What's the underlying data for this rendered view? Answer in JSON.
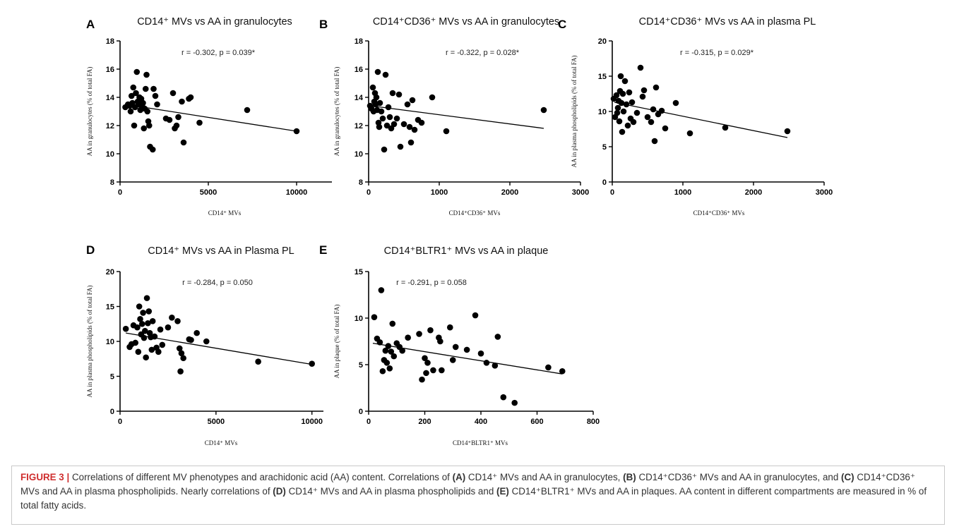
{
  "chart_data": [
    {
      "panel_letter": "A",
      "type": "scatter",
      "title": "CD14⁺ MVs vs AA in granulocytes",
      "annotation": "r = -0.302, p = 0.039*",
      "xlabel": "CD14⁺ MVs",
      "ylabel": "AA in granulocytes (% of total FA)",
      "xlim": [
        0,
        12000
      ],
      "ylim": [
        8,
        18
      ],
      "xticks": [
        "0",
        "5000",
        "10000"
      ],
      "yticks": [
        "8",
        "10",
        "12",
        "14",
        "16",
        "18"
      ],
      "regression": {
        "x": [
          300,
          10000
        ],
        "y": [
          13.5,
          11.6
        ]
      },
      "points": [
        [
          300,
          13.3
        ],
        [
          450,
          13.5
        ],
        [
          550,
          13.4
        ],
        [
          600,
          13.0
        ],
        [
          650,
          14.1
        ],
        [
          700,
          13.6
        ],
        [
          750,
          14.7
        ],
        [
          800,
          12.0
        ],
        [
          850,
          13.3
        ],
        [
          900,
          14.3
        ],
        [
          950,
          15.8
        ],
        [
          1000,
          13.7
        ],
        [
          1050,
          13.5
        ],
        [
          1100,
          14.0
        ],
        [
          1150,
          13.1
        ],
        [
          1200,
          13.9
        ],
        [
          1250,
          13.4
        ],
        [
          1300,
          13.6
        ],
        [
          1350,
          11.8
        ],
        [
          1400,
          13.2
        ],
        [
          1450,
          14.6
        ],
        [
          1500,
          15.6
        ],
        [
          1550,
          13.0
        ],
        [
          1600,
          12.3
        ],
        [
          1650,
          12.0
        ],
        [
          1700,
          10.5
        ],
        [
          1850,
          10.3
        ],
        [
          1900,
          14.6
        ],
        [
          2000,
          14.1
        ],
        [
          2100,
          13.5
        ],
        [
          2600,
          12.5
        ],
        [
          2800,
          12.4
        ],
        [
          3000,
          14.3
        ],
        [
          3100,
          11.8
        ],
        [
          3200,
          12.0
        ],
        [
          3300,
          12.6
        ],
        [
          3500,
          13.7
        ],
        [
          3600,
          10.8
        ],
        [
          3900,
          13.9
        ],
        [
          4000,
          14.0
        ],
        [
          4500,
          12.2
        ],
        [
          7200,
          13.1
        ],
        [
          10000,
          11.6
        ]
      ]
    },
    {
      "panel_letter": "B",
      "type": "scatter",
      "title": "CD14⁺CD36⁺ MVs vs AA in granulocytes",
      "annotation": "r = -0.322, p = 0.028*",
      "xlabel": "CD14⁺CD36⁺ MVs",
      "ylabel": "AA in granulocytes (% of total FA)",
      "xlim": [
        0,
        3000
      ],
      "ylim": [
        8,
        18
      ],
      "xticks": [
        "0",
        "1000",
        "2000",
        "3000"
      ],
      "yticks": [
        "8",
        "10",
        "12",
        "14",
        "16",
        "18"
      ],
      "regression": {
        "x": [
          30,
          2480
        ],
        "y": [
          13.4,
          11.8
        ]
      },
      "points": [
        [
          20,
          13.4
        ],
        [
          40,
          13.2
        ],
        [
          60,
          14.7
        ],
        [
          70,
          13.0
        ],
        [
          80,
          13.7
        ],
        [
          90,
          14.3
        ],
        [
          100,
          13.5
        ],
        [
          110,
          14.0
        ],
        [
          120,
          13.1
        ],
        [
          130,
          15.8
        ],
        [
          140,
          12.2
        ],
        [
          150,
          11.9
        ],
        [
          160,
          13.6
        ],
        [
          180,
          13.0
        ],
        [
          200,
          12.5
        ],
        [
          220,
          10.3
        ],
        [
          240,
          15.6
        ],
        [
          260,
          12.0
        ],
        [
          280,
          13.3
        ],
        [
          300,
          12.6
        ],
        [
          320,
          11.8
        ],
        [
          340,
          14.3
        ],
        [
          360,
          12.1
        ],
        [
          400,
          12.5
        ],
        [
          430,
          14.2
        ],
        [
          450,
          10.5
        ],
        [
          500,
          12.1
        ],
        [
          550,
          13.5
        ],
        [
          580,
          11.9
        ],
        [
          600,
          10.8
        ],
        [
          620,
          13.8
        ],
        [
          650,
          11.7
        ],
        [
          700,
          12.4
        ],
        [
          750,
          12.2
        ],
        [
          900,
          14.0
        ],
        [
          1100,
          11.6
        ],
        [
          2480,
          13.1
        ]
      ]
    },
    {
      "panel_letter": "C",
      "type": "scatter",
      "title": "CD14⁺CD36⁺ MVs vs AA in plasma PL",
      "annotation": "r = -0.315, p = 0.029*",
      "xlabel": "CD14⁺CD36⁺ MVs",
      "ylabel": "AA in plasma phospholipids (% of total FA)",
      "xlim": [
        0,
        3000
      ],
      "ylim": [
        0,
        20
      ],
      "xticks": [
        "0",
        "1000",
        "2000",
        "3000"
      ],
      "yticks": [
        "0",
        "5",
        "10",
        "15",
        "20"
      ],
      "regression": {
        "x": [
          30,
          2480
        ],
        "y": [
          11.3,
          6.3
        ]
      },
      "points": [
        [
          20,
          11.8
        ],
        [
          40,
          9.2
        ],
        [
          60,
          12.3
        ],
        [
          70,
          9.8
        ],
        [
          80,
          10.5
        ],
        [
          90,
          11.5
        ],
        [
          100,
          8.6
        ],
        [
          110,
          12.9
        ],
        [
          120,
          15.0
        ],
        [
          130,
          11.2
        ],
        [
          140,
          7.1
        ],
        [
          150,
          12.5
        ],
        [
          160,
          10.0
        ],
        [
          180,
          14.3
        ],
        [
          200,
          11.0
        ],
        [
          220,
          8.0
        ],
        [
          240,
          12.7
        ],
        [
          260,
          9.0
        ],
        [
          280,
          11.3
        ],
        [
          300,
          8.5
        ],
        [
          350,
          9.8
        ],
        [
          400,
          16.2
        ],
        [
          430,
          12.1
        ],
        [
          450,
          13.0
        ],
        [
          500,
          9.2
        ],
        [
          550,
          8.5
        ],
        [
          580,
          10.3
        ],
        [
          600,
          5.8
        ],
        [
          620,
          13.4
        ],
        [
          650,
          9.6
        ],
        [
          700,
          10.1
        ],
        [
          750,
          7.6
        ],
        [
          900,
          11.2
        ],
        [
          1100,
          6.9
        ],
        [
          1600,
          7.7
        ],
        [
          2480,
          7.2
        ]
      ]
    },
    {
      "panel_letter": "D",
      "type": "scatter",
      "title": "CD14⁺ MVs vs AA in Plasma PL",
      "annotation": "r = -0.284, p = 0.050",
      "xlabel": "CD14⁺ MVs",
      "ylabel": "AA in plasma phospholipids (% of total FA)",
      "xlim": [
        0,
        10600
      ],
      "ylim": [
        0,
        20
      ],
      "xticks": [
        "0",
        "5000",
        "10000"
      ],
      "yticks": [
        "0",
        "5",
        "10",
        "15",
        "20"
      ],
      "regression": {
        "x": [
          300,
          10000
        ],
        "y": [
          11.2,
          6.7
        ]
      },
      "points": [
        [
          300,
          11.8
        ],
        [
          500,
          9.2
        ],
        [
          600,
          9.6
        ],
        [
          700,
          12.3
        ],
        [
          800,
          9.8
        ],
        [
          900,
          12.0
        ],
        [
          950,
          8.5
        ],
        [
          1000,
          15.0
        ],
        [
          1050,
          13.2
        ],
        [
          1100,
          11.0
        ],
        [
          1150,
          12.5
        ],
        [
          1200,
          14.1
        ],
        [
          1250,
          10.5
        ],
        [
          1300,
          11.5
        ],
        [
          1350,
          7.7
        ],
        [
          1400,
          16.2
        ],
        [
          1450,
          12.6
        ],
        [
          1500,
          14.3
        ],
        [
          1550,
          11.2
        ],
        [
          1600,
          10.6
        ],
        [
          1650,
          8.8
        ],
        [
          1700,
          12.9
        ],
        [
          1800,
          10.7
        ],
        [
          1900,
          9.1
        ],
        [
          2000,
          8.5
        ],
        [
          2100,
          11.7
        ],
        [
          2200,
          9.5
        ],
        [
          2500,
          12.0
        ],
        [
          2700,
          13.4
        ],
        [
          3000,
          12.9
        ],
        [
          3100,
          9.0
        ],
        [
          3150,
          5.7
        ],
        [
          3200,
          8.3
        ],
        [
          3300,
          7.6
        ],
        [
          3600,
          10.3
        ],
        [
          3700,
          10.2
        ],
        [
          4000,
          11.2
        ],
        [
          4500,
          10.0
        ],
        [
          7200,
          7.1
        ],
        [
          10000,
          6.8
        ]
      ]
    },
    {
      "panel_letter": "E",
      "type": "scatter",
      "title": "CD14⁺BLTR1⁺ MVs vs AA in plaque",
      "annotation": "r = -0.291, p = 0.058",
      "xlabel": "CD14⁺BLTR1⁺ MVs",
      "ylabel": "AA in plaque (% of total FA)",
      "xlim": [
        0,
        800
      ],
      "ylim": [
        0,
        15
      ],
      "xticks": [
        "0",
        "200",
        "400",
        "600",
        "800"
      ],
      "yticks": [
        "0",
        "5",
        "10",
        "15"
      ],
      "regression": {
        "x": [
          15,
          690
        ],
        "y": [
          7.3,
          4.0
        ]
      },
      "points": [
        [
          20,
          10.1
        ],
        [
          30,
          7.8
        ],
        [
          40,
          7.4
        ],
        [
          45,
          13.0
        ],
        [
          50,
          4.3
        ],
        [
          55,
          5.5
        ],
        [
          60,
          6.5
        ],
        [
          65,
          5.2
        ],
        [
          70,
          7.0
        ],
        [
          75,
          4.6
        ],
        [
          80,
          6.4
        ],
        [
          85,
          9.4
        ],
        [
          90,
          5.9
        ],
        [
          100,
          7.3
        ],
        [
          110,
          6.9
        ],
        [
          120,
          6.5
        ],
        [
          140,
          7.9
        ],
        [
          180,
          8.3
        ],
        [
          190,
          3.4
        ],
        [
          200,
          5.7
        ],
        [
          205,
          4.1
        ],
        [
          210,
          5.2
        ],
        [
          220,
          8.7
        ],
        [
          230,
          4.4
        ],
        [
          250,
          7.9
        ],
        [
          255,
          7.5
        ],
        [
          260,
          4.4
        ],
        [
          290,
          9.0
        ],
        [
          300,
          5.5
        ],
        [
          310,
          6.9
        ],
        [
          350,
          6.6
        ],
        [
          380,
          10.3
        ],
        [
          400,
          6.2
        ],
        [
          420,
          5.2
        ],
        [
          450,
          4.9
        ],
        [
          460,
          8.0
        ],
        [
          480,
          1.5
        ],
        [
          520,
          0.9
        ],
        [
          640,
          4.7
        ],
        [
          690,
          4.3
        ]
      ]
    }
  ],
  "caption": {
    "label": "FIGURE 3 |",
    "intro": " Correlations of different MV phenotypes and arachidonic acid (AA) content. Correlations of ",
    "a_ref": "(A)",
    "a_text": " CD14⁺ MVs and AA in granulocytes, ",
    "b_ref": "(B)",
    "b_text": " CD14⁺CD36⁺ MVs and AA in granulocytes, and ",
    "c_ref": "(C)",
    "c_text": " CD14⁺CD36⁺ MVs and AA in plasma phospholipids. Nearly correlations of ",
    "d_ref": "(D)",
    "d_text": " CD14⁺ MVs and AA in plasma phospholipids and ",
    "e_ref": "(E)",
    "e_text": " CD14⁺BLTR1⁺ MVs and AA in plaques. AA content in different compartments are measured in % of total fatty acids."
  }
}
